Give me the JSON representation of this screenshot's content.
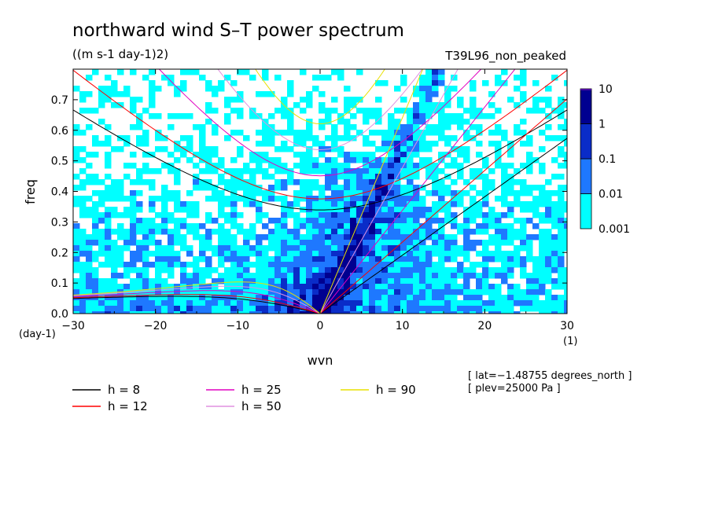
{
  "chart_data": {
    "type": "heatmap",
    "title": "northward wind S–T power spectrum",
    "subtitle": "((m s-1 day-1)2)",
    "run_label": "T39L96_non_peaked",
    "xlabel": "wvn",
    "ylabel": "freq",
    "x_unit": "(1)",
    "y_unit": "(day-1)",
    "xlim": [
      -30,
      30
    ],
    "ylim": [
      0,
      0.8
    ],
    "x_ticks": [
      -30,
      -20,
      -10,
      0,
      10,
      20,
      30
    ],
    "x_tick_labels": [
      "−30",
      "−20",
      "−10",
      "0",
      "10",
      "20",
      "30"
    ],
    "y_ticks": [
      0.0,
      0.1,
      0.2,
      0.3,
      0.4,
      0.5,
      0.6,
      0.7
    ],
    "y_tick_labels": [
      "0.0",
      "0.1",
      "0.2",
      "0.3",
      "0.4",
      "0.5",
      "0.6",
      "0.7"
    ],
    "colorbar": {
      "scale": "log",
      "levels": [
        0.001,
        0.01,
        0.1,
        1,
        10
      ],
      "level_labels": [
        "0.001",
        "0.01",
        "0.1",
        "1",
        "10"
      ],
      "colors": [
        "#00ffff",
        "#1e78ff",
        "#0a2cc8",
        "#000090",
        "#4b0aa0"
      ]
    },
    "dispersion_curves": [
      {
        "name": "h =  8",
        "equivalent_depth": 8,
        "color": "#000000"
      },
      {
        "name": "h = 12",
        "equivalent_depth": 12,
        "color": "#ff0000"
      },
      {
        "name": "h = 25",
        "equivalent_depth": 25,
        "color": "#e000c0"
      },
      {
        "name": "h = 50",
        "equivalent_depth": 50,
        "color": "#e090e0"
      },
      {
        "name": "h = 90",
        "equivalent_depth": 90,
        "color": "#e8e000"
      }
    ],
    "annotations": [
      "[ lat=−1.48755 degrees_north ]",
      "[ plev=25000 Pa ]"
    ]
  }
}
